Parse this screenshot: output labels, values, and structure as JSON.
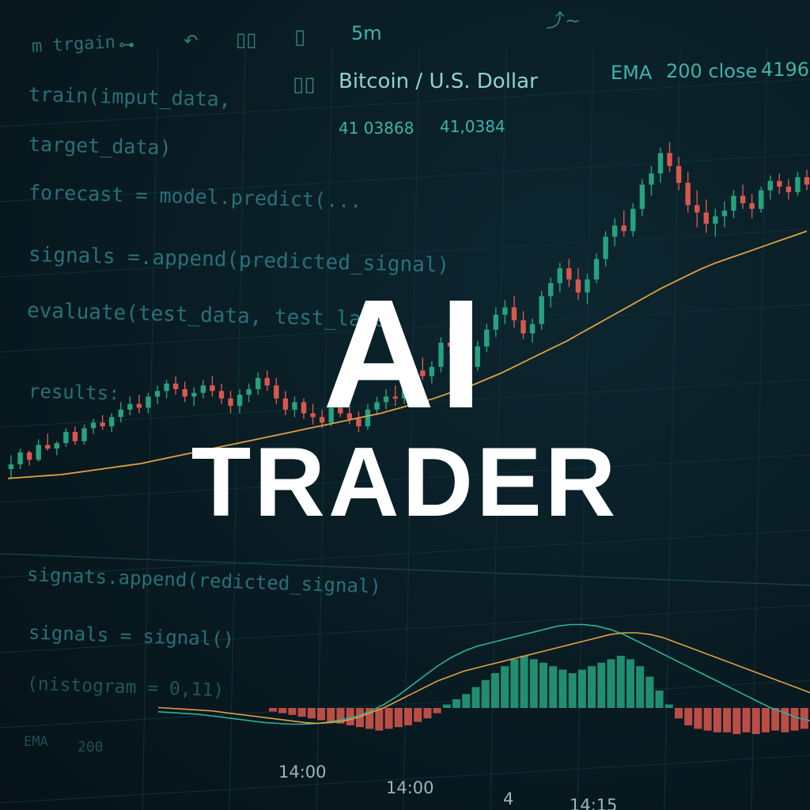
{
  "toolbar": {
    "chart_title": "m trgain",
    "interval": "5m",
    "indicator_icon": "indicator-icon",
    "undo_icon": "undo-icon",
    "bar_style_icon": "candles-icon",
    "wave_icon": "wave-icon"
  },
  "header": {
    "symbol": "Bitcoin / U.S. Dollar",
    "indicator_name": "EMA",
    "indicator_params": "200 close",
    "indicator_value": "4196",
    "price_a": "41 03868",
    "price_b": "41,0384"
  },
  "code_lines": [
    "train(imput_data,",
    "target_data)",
    "forecast = model.predict(...",
    "signals =.append(predicted_signal)",
    "evaluate(test_data, test_label",
    "results:",
    "signats.append(redicted_signal)",
    "signals = signal()",
    "(nistogram = 0,11)"
  ],
  "bottom": {
    "indicator_name": "EMA",
    "indicator_value": "200"
  },
  "time_labels": [
    "14:00",
    "14:00",
    "4",
    "14:15"
  ],
  "hero": {
    "line1": "AI",
    "line2": "TRADER"
  },
  "colors": {
    "up": "#27a27f",
    "down": "#d9584e",
    "ema": "#e0a040",
    "signal": "#2fb19a",
    "text_accent": "#3fb3a8"
  },
  "chart_data": {
    "type": "candlestick",
    "series": [
      {
        "name": "Bitcoin / U.S. Dollar",
        "kind": "ohlc",
        "ohlc": [
          [
            40,
            55,
            30,
            45
          ],
          [
            45,
            62,
            40,
            58
          ],
          [
            58,
            60,
            44,
            50
          ],
          [
            50,
            72,
            48,
            66
          ],
          [
            66,
            78,
            60,
            62
          ],
          [
            62,
            70,
            55,
            68
          ],
          [
            68,
            84,
            64,
            80
          ],
          [
            80,
            86,
            66,
            70
          ],
          [
            70,
            88,
            66,
            84
          ],
          [
            84,
            94,
            78,
            90
          ],
          [
            90,
            98,
            82,
            86
          ],
          [
            86,
            100,
            80,
            96
          ],
          [
            96,
            112,
            90,
            104
          ],
          [
            104,
            118,
            98,
            110
          ],
          [
            110,
            120,
            100,
            106
          ],
          [
            106,
            122,
            100,
            118
          ],
          [
            118,
            130,
            110,
            124
          ],
          [
            124,
            136,
            116,
            132
          ],
          [
            132,
            140,
            120,
            126
          ],
          [
            126,
            134,
            112,
            118
          ],
          [
            118,
            128,
            108,
            122
          ],
          [
            122,
            136,
            116,
            130
          ],
          [
            130,
            140,
            118,
            124
          ],
          [
            124,
            132,
            110,
            116
          ],
          [
            116,
            124,
            100,
            108
          ],
          [
            108,
            126,
            100,
            120
          ],
          [
            120,
            132,
            112,
            126
          ],
          [
            126,
            144,
            120,
            138
          ],
          [
            138,
            146,
            124,
            130
          ],
          [
            130,
            138,
            110,
            116
          ],
          [
            116,
            124,
            98,
            104
          ],
          [
            104,
            118,
            96,
            112
          ],
          [
            112,
            116,
            94,
            100
          ],
          [
            100,
            110,
            88,
            96
          ],
          [
            96,
            104,
            84,
            90
          ],
          [
            90,
            112,
            86,
            106
          ],
          [
            106,
            116,
            96,
            100
          ],
          [
            100,
            108,
            88,
            94
          ],
          [
            94,
            102,
            80,
            86
          ],
          [
            86,
            110,
            82,
            104
          ],
          [
            104,
            118,
            98,
            112
          ],
          [
            112,
            126,
            104,
            118
          ],
          [
            118,
            130,
            108,
            116
          ],
          [
            116,
            136,
            110,
            130
          ],
          [
            130,
            150,
            122,
            146
          ],
          [
            146,
            160,
            136,
            140
          ],
          [
            140,
            156,
            132,
            150
          ],
          [
            150,
            182,
            144,
            176
          ],
          [
            176,
            192,
            164,
            172
          ],
          [
            172,
            184,
            150,
            160
          ],
          [
            160,
            170,
            140,
            150
          ],
          [
            150,
            178,
            146,
            172
          ],
          [
            172,
            196,
            166,
            190
          ],
          [
            190,
            214,
            182,
            206
          ],
          [
            206,
            222,
            196,
            214
          ],
          [
            214,
            226,
            192,
            200
          ],
          [
            200,
            210,
            180,
            186
          ],
          [
            186,
            202,
            176,
            196
          ],
          [
            196,
            232,
            190,
            226
          ],
          [
            226,
            246,
            214,
            240
          ],
          [
            240,
            262,
            230,
            256
          ],
          [
            256,
            266,
            236,
            244
          ],
          [
            244,
            256,
            222,
            230
          ],
          [
            230,
            250,
            218,
            244
          ],
          [
            244,
            272,
            240,
            266
          ],
          [
            266,
            296,
            258,
            290
          ],
          [
            290,
            310,
            280,
            302
          ],
          [
            302,
            318,
            290,
            296
          ],
          [
            296,
            326,
            290,
            320
          ],
          [
            320,
            352,
            312,
            346
          ],
          [
            346,
            366,
            334,
            358
          ],
          [
            358,
            386,
            348,
            380
          ],
          [
            380,
            392,
            360,
            366
          ],
          [
            366,
            376,
            340,
            348
          ],
          [
            348,
            360,
            316,
            324
          ],
          [
            324,
            340,
            300,
            316
          ],
          [
            316,
            330,
            294,
            304
          ],
          [
            304,
            320,
            290,
            312
          ],
          [
            312,
            328,
            300,
            318
          ],
          [
            318,
            340,
            310,
            334
          ],
          [
            334,
            346,
            320,
            326
          ],
          [
            326,
            336,
            310,
            320
          ],
          [
            320,
            344,
            316,
            340
          ],
          [
            340,
            356,
            330,
            350
          ],
          [
            350,
            358,
            336,
            344
          ],
          [
            344,
            352,
            330,
            338
          ],
          [
            338,
            360,
            334,
            354
          ],
          [
            354,
            362,
            340,
            346
          ]
        ]
      },
      {
        "name": "EMA 200 close",
        "kind": "line",
        "values": [
          30,
          31,
          32,
          33,
          34,
          36,
          38,
          40,
          42,
          44,
          46,
          49,
          52,
          55,
          58,
          61,
          64,
          67,
          70,
          73,
          76,
          79,
          82,
          85,
          88,
          91,
          94,
          97,
          100,
          104,
          108,
          112,
          116,
          121,
          126,
          131,
          137,
          143,
          150,
          157,
          164,
          171,
          178,
          186,
          194,
          202,
          210,
          218,
          226,
          234,
          241,
          248,
          255,
          261,
          266,
          271,
          276,
          281,
          286,
          291,
          296
        ]
      }
    ],
    "indicator_panel": {
      "histogram": [
        -2,
        -3,
        -4,
        -5,
        -6,
        -7,
        -8,
        -9,
        -10,
        -11,
        -12,
        -13,
        -12,
        -11,
        -10,
        -8,
        -6,
        -3,
        2,
        5,
        8,
        12,
        16,
        20,
        24,
        28,
        30,
        28,
        26,
        24,
        22,
        20,
        22,
        24,
        26,
        28,
        30,
        28,
        24,
        18,
        10,
        2,
        -6,
        -10,
        -12,
        -13,
        -14,
        -14,
        -15,
        -14,
        -15,
        -14,
        -13,
        -14,
        -13,
        -12
      ],
      "signal_line": [
        10,
        9,
        8,
        7,
        6,
        4,
        2,
        0,
        -2,
        -4,
        -6,
        -8,
        -9,
        -8,
        -6,
        -2,
        4,
        10,
        18,
        26,
        34,
        42,
        48,
        54,
        58,
        62,
        66,
        70,
        74,
        78,
        82,
        86,
        90,
        94,
        98,
        100,
        100,
        98,
        94,
        88,
        82,
        76,
        70,
        64,
        58,
        52,
        46,
        40,
        34,
        28
      ],
      "macd_line": [
        5,
        4,
        3,
        2,
        0,
        -2,
        -4,
        -6,
        -8,
        -9,
        -10,
        -10,
        -9,
        -7,
        -4,
        0,
        6,
        14,
        24,
        36,
        48,
        60,
        70,
        78,
        84,
        88,
        92,
        96,
        100,
        104,
        108,
        110,
        110,
        108,
        104,
        98,
        90,
        82,
        74,
        66,
        58,
        50,
        42,
        34,
        26,
        18,
        10,
        4,
        -2,
        -6
      ]
    }
  }
}
